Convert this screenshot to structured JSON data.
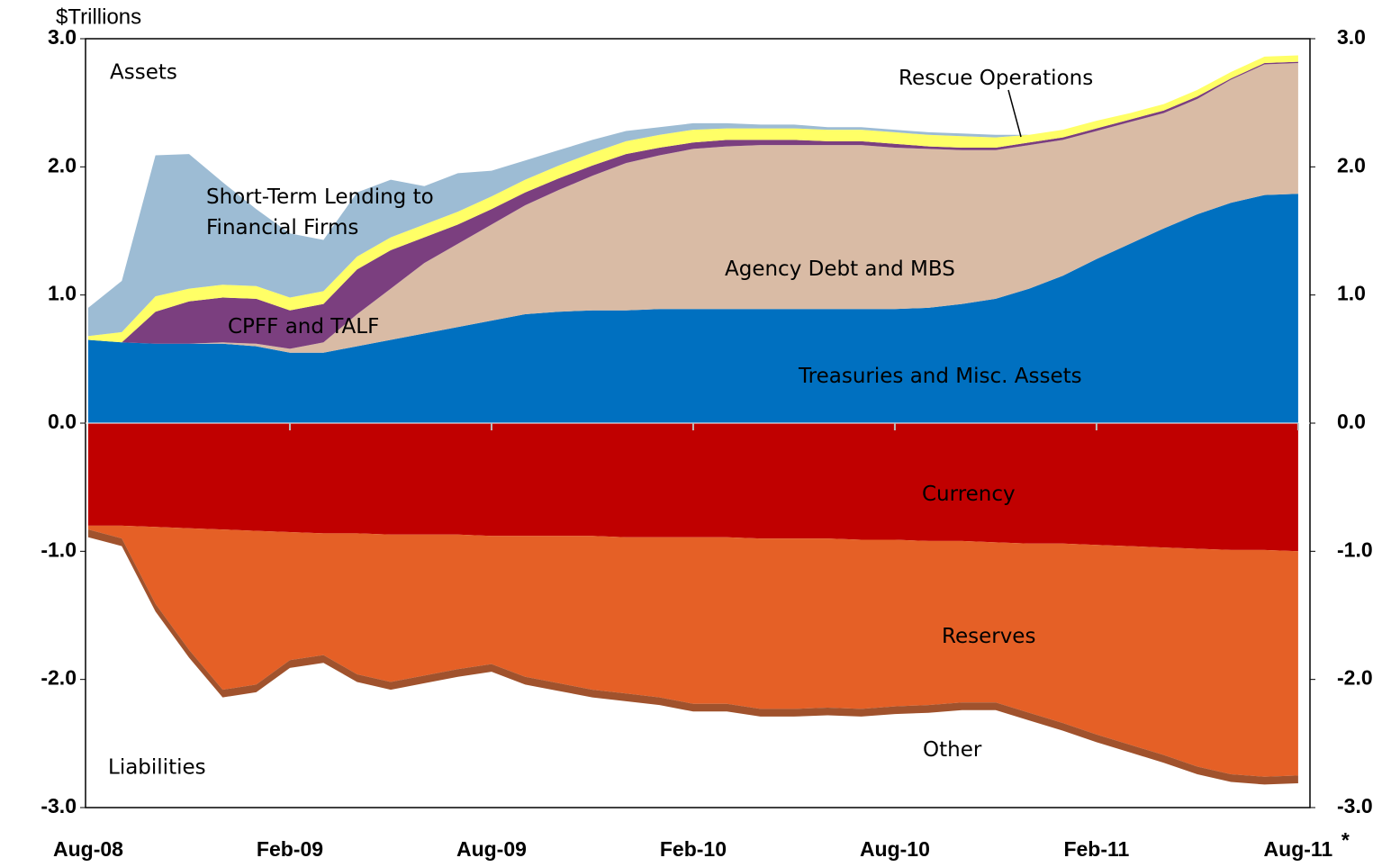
{
  "chart_data": {
    "type": "stacked_area",
    "y_label": "$Trillions",
    "annotations": [
      "Assets",
      "Liabilities"
    ],
    "footnote_mark": "*",
    "categories": [
      "Aug-08",
      null,
      null,
      null,
      null,
      null,
      "Feb-09",
      null,
      null,
      null,
      null,
      null,
      "Aug-09",
      null,
      null,
      null,
      null,
      null,
      "Feb-10",
      null,
      null,
      null,
      null,
      null,
      "Aug-10",
      null,
      null,
      null,
      null,
      null,
      "Feb-11",
      null,
      null,
      null,
      null,
      null,
      "Aug-11"
    ],
    "ylim": [
      -3,
      3
    ],
    "yticks": [
      {
        "value": -3,
        "label": "-3.0"
      },
      {
        "value": -2,
        "label": "-2.0"
      },
      {
        "value": -1,
        "label": "-1.0"
      },
      {
        "value": 0,
        "label": "0.0"
      },
      {
        "value": 1,
        "label": "1.0"
      },
      {
        "value": 2,
        "label": "2.0"
      },
      {
        "value": 3,
        "label": "3.0"
      }
    ],
    "y2lim": [
      -3,
      3
    ],
    "y2ticks": [
      {
        "value": -3,
        "label": "-3.0"
      },
      {
        "value": -2,
        "label": "-2.0"
      },
      {
        "value": -1,
        "label": "-1.0"
      },
      {
        "value": 0,
        "label": "0.0"
      },
      {
        "value": 1,
        "label": "1.0"
      },
      {
        "value": 2,
        "label": "2.0"
      },
      {
        "value": 3,
        "label": "3.0"
      }
    ],
    "grid": false,
    "series": [
      {
        "name": "Treasuries and Misc. Assets",
        "color": "#0070c0",
        "values": [
          0.65,
          0.63,
          0.62,
          0.62,
          0.62,
          0.6,
          0.55,
          0.55,
          0.6,
          0.65,
          0.7,
          0.75,
          0.8,
          0.85,
          0.87,
          0.88,
          0.88,
          0.89,
          0.89,
          0.89,
          0.89,
          0.89,
          0.89,
          0.89,
          0.89,
          0.9,
          0.93,
          0.97,
          1.05,
          1.15,
          1.28,
          1.4,
          1.52,
          1.63,
          1.72,
          1.78,
          1.79
        ]
      },
      {
        "name": "Agency Debt and MBS",
        "color": "#d9bba5",
        "values": [
          0,
          0,
          0,
          0,
          0.01,
          0.02,
          0.03,
          0.08,
          0.25,
          0.4,
          0.55,
          0.65,
          0.75,
          0.85,
          0.95,
          1.05,
          1.15,
          1.2,
          1.25,
          1.27,
          1.28,
          1.28,
          1.28,
          1.28,
          1.26,
          1.24,
          1.2,
          1.16,
          1.12,
          1.06,
          1.0,
          0.95,
          0.9,
          0.9,
          0.96,
          1.02,
          1.02
        ]
      },
      {
        "name": "CPFF and TALF",
        "color": "#7b3f7f",
        "values": [
          0,
          0,
          0.25,
          0.33,
          0.35,
          0.35,
          0.3,
          0.3,
          0.35,
          0.3,
          0.2,
          0.15,
          0.12,
          0.1,
          0.09,
          0.08,
          0.07,
          0.06,
          0.05,
          0.05,
          0.04,
          0.04,
          0.03,
          0.03,
          0.03,
          0.02,
          0.02,
          0.02,
          0.02,
          0.02,
          0.02,
          0.02,
          0.02,
          0.02,
          0.01,
          0.01,
          0.01
        ]
      },
      {
        "name": "Rescue Operations",
        "color": "#ffff66",
        "values": [
          0.03,
          0.08,
          0.12,
          0.1,
          0.1,
          0.1,
          0.1,
          0.1,
          0.1,
          0.1,
          0.1,
          0.1,
          0.1,
          0.1,
          0.1,
          0.1,
          0.1,
          0.1,
          0.1,
          0.09,
          0.09,
          0.09,
          0.09,
          0.09,
          0.09,
          0.09,
          0.09,
          0.08,
          0.06,
          0.06,
          0.06,
          0.05,
          0.05,
          0.05,
          0.05,
          0.05,
          0.05
        ]
      },
      {
        "name": "Short-Term Lending to Financial Firms",
        "color": "#9dbcd4",
        "values": [
          0.22,
          0.4,
          1.1,
          1.05,
          0.8,
          0.6,
          0.5,
          0.4,
          0.5,
          0.45,
          0.3,
          0.3,
          0.2,
          0.15,
          0.12,
          0.1,
          0.08,
          0.06,
          0.05,
          0.04,
          0.03,
          0.03,
          0.02,
          0.02,
          0.02,
          0.02,
          0.02,
          0.02,
          0,
          0,
          0,
          0,
          0,
          0,
          0,
          0,
          0
        ]
      },
      {
        "name": "Currency",
        "color": "#c00000",
        "values": [
          -0.8,
          -0.8,
          -0.81,
          -0.82,
          -0.83,
          -0.84,
          -0.85,
          -0.86,
          -0.86,
          -0.87,
          -0.87,
          -0.87,
          -0.88,
          -0.88,
          -0.88,
          -0.88,
          -0.89,
          -0.89,
          -0.89,
          -0.89,
          -0.9,
          -0.9,
          -0.9,
          -0.91,
          -0.91,
          -0.92,
          -0.92,
          -0.93,
          -0.94,
          -0.94,
          -0.95,
          -0.96,
          -0.97,
          -0.98,
          -0.99,
          -0.99,
          -1.0
        ]
      },
      {
        "name": "Reserves",
        "color": "#e56026",
        "values": [
          -0.03,
          -0.1,
          -0.6,
          -0.95,
          -1.25,
          -1.2,
          -1.0,
          -0.95,
          -1.1,
          -1.15,
          -1.1,
          -1.05,
          -1.0,
          -1.1,
          -1.15,
          -1.2,
          -1.22,
          -1.25,
          -1.3,
          -1.3,
          -1.33,
          -1.33,
          -1.32,
          -1.32,
          -1.3,
          -1.28,
          -1.26,
          -1.25,
          -1.32,
          -1.4,
          -1.48,
          -1.55,
          -1.62,
          -1.7,
          -1.75,
          -1.77,
          -1.75
        ]
      },
      {
        "name": "Other",
        "color": "#a0522d",
        "values": [
          -0.06,
          -0.06,
          -0.06,
          -0.06,
          -0.06,
          -0.06,
          -0.06,
          -0.06,
          -0.06,
          -0.06,
          -0.06,
          -0.06,
          -0.06,
          -0.06,
          -0.06,
          -0.06,
          -0.06,
          -0.06,
          -0.06,
          -0.06,
          -0.06,
          -0.06,
          -0.06,
          -0.06,
          -0.06,
          -0.06,
          -0.06,
          -0.06,
          -0.06,
          -0.06,
          -0.06,
          -0.06,
          -0.06,
          -0.06,
          -0.06,
          -0.06,
          -0.06
        ]
      }
    ]
  }
}
